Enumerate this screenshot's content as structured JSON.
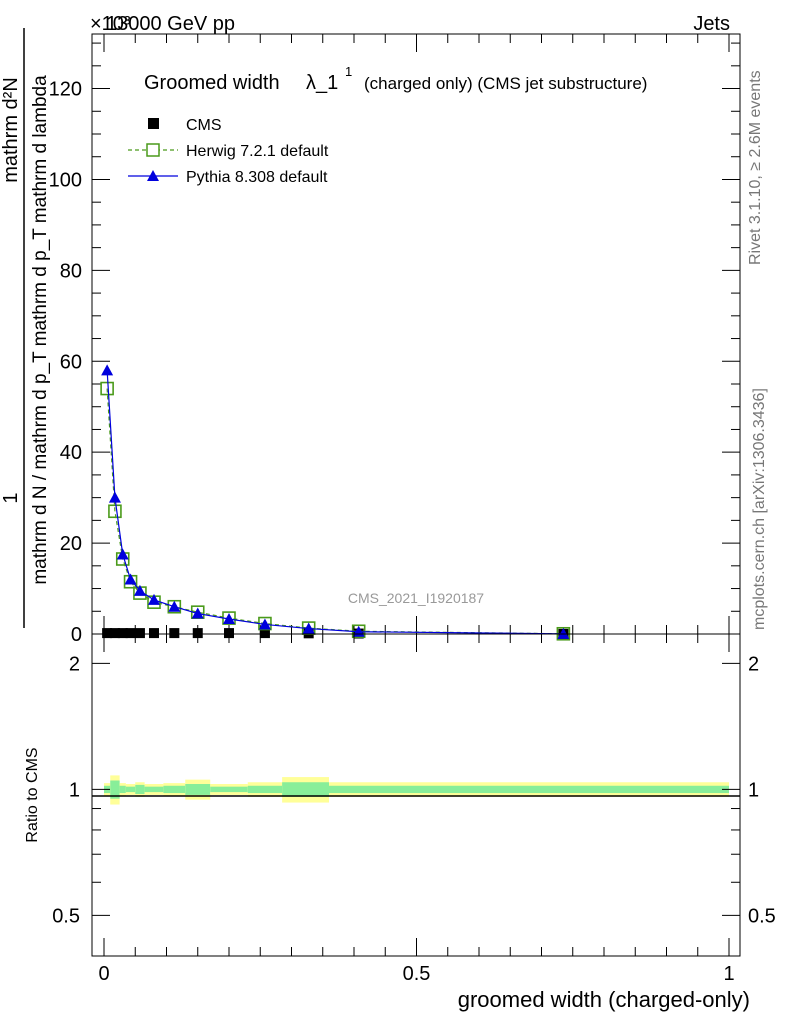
{
  "header": {
    "energy": "13000 GeV pp",
    "process": "Jets",
    "scale_marker": "×10³"
  },
  "side_labels": {
    "rivet": "Rivet 3.1.10, ≥ 2.6M events",
    "mcplots": "mcplots.cern.ch [arXiv:1306.3436]"
  },
  "chart_data": [
    {
      "type": "scatter",
      "title_main": "Groomed width",
      "title_lambda": "λ_1",
      "title_sup": "1",
      "title_sub": "(charged only) (CMS jet substructure)",
      "watermark": "CMS_2021_I1920187",
      "ylabel_top": "1",
      "ylabel_bottom": "mathrm d N / mathrm d p_T mathrm d p_T mathrm d lambda",
      "ylabel_num": "mathrm d²N",
      "xlabel": "groomed width (charged-only)",
      "xlim": [
        0,
        1
      ],
      "ylim": [
        0,
        132
      ],
      "y_scale_factor": 1000,
      "yticks": [
        0,
        20,
        40,
        60,
        80,
        100,
        120
      ],
      "x": [
        0.005,
        0.0175,
        0.03,
        0.0425,
        0.0575,
        0.08,
        0.1125,
        0.15,
        0.2,
        0.2575,
        0.3275,
        0.4075,
        0.735
      ],
      "series": [
        {
          "name": "CMS",
          "color": "#000000",
          "marker": "square-filled",
          "values": [
            0.2,
            0.2,
            0.2,
            0.2,
            0.2,
            0.2,
            0.2,
            0.2,
            0.2,
            0.2,
            0.15,
            0.1,
            0.02
          ]
        },
        {
          "name": "Herwig 7.2.1 default",
          "color": "#4a9a1a",
          "marker": "square-open",
          "line": "dashed",
          "values": [
            54,
            27,
            16.5,
            11.5,
            9,
            7,
            6,
            4.8,
            3.5,
            2.3,
            1.3,
            0.6,
            0.05
          ]
        },
        {
          "name": "Pythia 8.308 default",
          "color": "#0000dd",
          "marker": "triangle-filled",
          "line": "solid",
          "values": [
            58,
            30,
            17.5,
            12,
            9.5,
            7.5,
            6,
            4.5,
            3.3,
            2.1,
            1.2,
            0.5,
            0.04
          ]
        }
      ]
    },
    {
      "type": "line",
      "ylabel": "Ratio to CMS",
      "ylim": [
        0.4,
        2.35
      ],
      "yticks": [
        0.5,
        1,
        2
      ],
      "yscale": "log",
      "xticks": [
        0,
        0.5,
        1
      ],
      "reference": 1,
      "bands": [
        {
          "x0": 0.0,
          "x1": 0.01,
          "stat": 0.02,
          "total": 0.035
        },
        {
          "x0": 0.01,
          "x1": 0.025,
          "stat": 0.05,
          "total": 0.08
        },
        {
          "x0": 0.025,
          "x1": 0.035,
          "stat": 0.02,
          "total": 0.035
        },
        {
          "x0": 0.035,
          "x1": 0.05,
          "stat": 0.015,
          "total": 0.03
        },
        {
          "x0": 0.05,
          "x1": 0.065,
          "stat": 0.025,
          "total": 0.04
        },
        {
          "x0": 0.065,
          "x1": 0.095,
          "stat": 0.015,
          "total": 0.03
        },
        {
          "x0": 0.095,
          "x1": 0.13,
          "stat": 0.02,
          "total": 0.035
        },
        {
          "x0": 0.13,
          "x1": 0.17,
          "stat": 0.03,
          "total": 0.055
        },
        {
          "x0": 0.17,
          "x1": 0.23,
          "stat": 0.015,
          "total": 0.03
        },
        {
          "x0": 0.23,
          "x1": 0.285,
          "stat": 0.02,
          "total": 0.04
        },
        {
          "x0": 0.285,
          "x1": 0.36,
          "stat": 0.04,
          "total": 0.07
        },
        {
          "x0": 0.36,
          "x1": 0.44,
          "stat": 0.02,
          "total": 0.04
        },
        {
          "x0": 0.44,
          "x1": 1.0,
          "stat": 0.02,
          "total": 0.04
        }
      ]
    }
  ]
}
